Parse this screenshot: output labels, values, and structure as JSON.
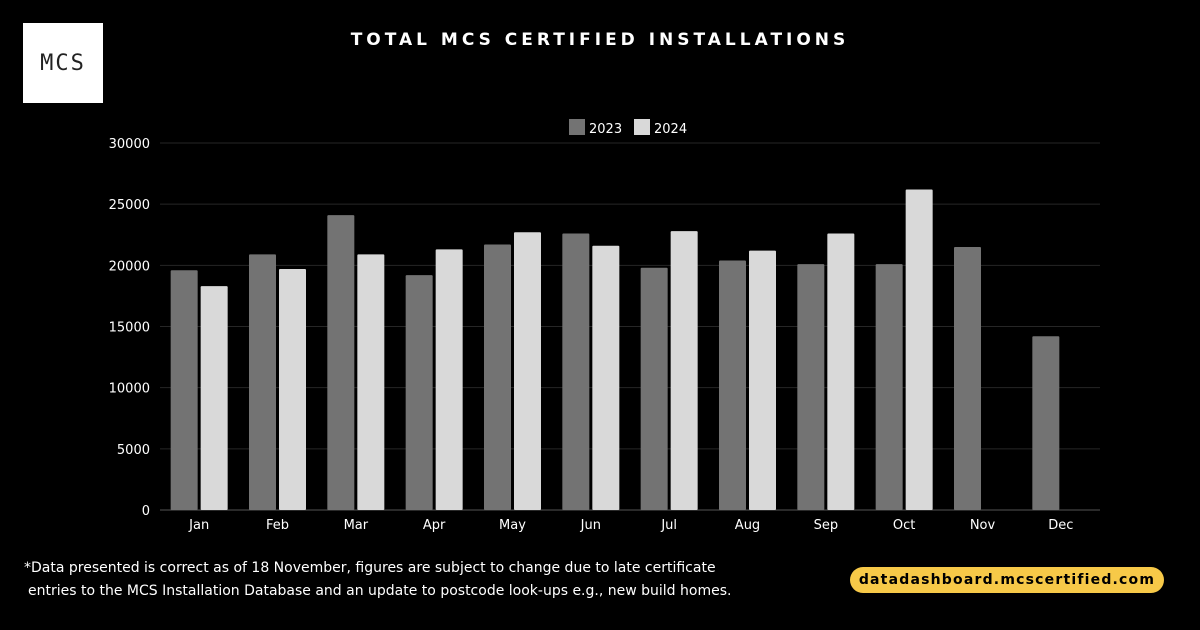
{
  "logo": {
    "text": "MCS"
  },
  "title": "TOTAL MCS CERTIFIED INSTALLATIONS",
  "footnote": {
    "line1": "*Data presented is correct as of 18 November, figures are subject to change due to late certificate",
    "line2": "entries to the MCS Installation Database and an update to postcode look-ups e.g., new build homes."
  },
  "url": "datadashboard.mcscertified.com",
  "colors": {
    "background": "#000000",
    "series_2023": "#737373",
    "series_2024": "#d9d9d9",
    "accent": "#f7c948",
    "gridline": "#262626"
  },
  "chart_data": {
    "type": "bar",
    "title": "TOTAL MCS CERTIFIED INSTALLATIONS",
    "xlabel": "",
    "ylabel": "",
    "categories": [
      "Jan",
      "Feb",
      "Mar",
      "Apr",
      "May",
      "Jun",
      "Jul",
      "Aug",
      "Sep",
      "Oct",
      "Nov",
      "Dec"
    ],
    "series": [
      {
        "name": "2023",
        "values": [
          19600,
          20900,
          24100,
          19200,
          21700,
          22600,
          19800,
          20400,
          20100,
          20100,
          21500,
          14200
        ]
      },
      {
        "name": "2024",
        "values": [
          18300,
          19700,
          20900,
          21300,
          22700,
          21600,
          22800,
          21200,
          22600,
          26200,
          null,
          null
        ]
      }
    ],
    "ylim": [
      0,
      30000
    ],
    "yticks": [
      0,
      5000,
      10000,
      15000,
      20000,
      25000,
      30000
    ],
    "grid": true,
    "legend": "top-center"
  }
}
